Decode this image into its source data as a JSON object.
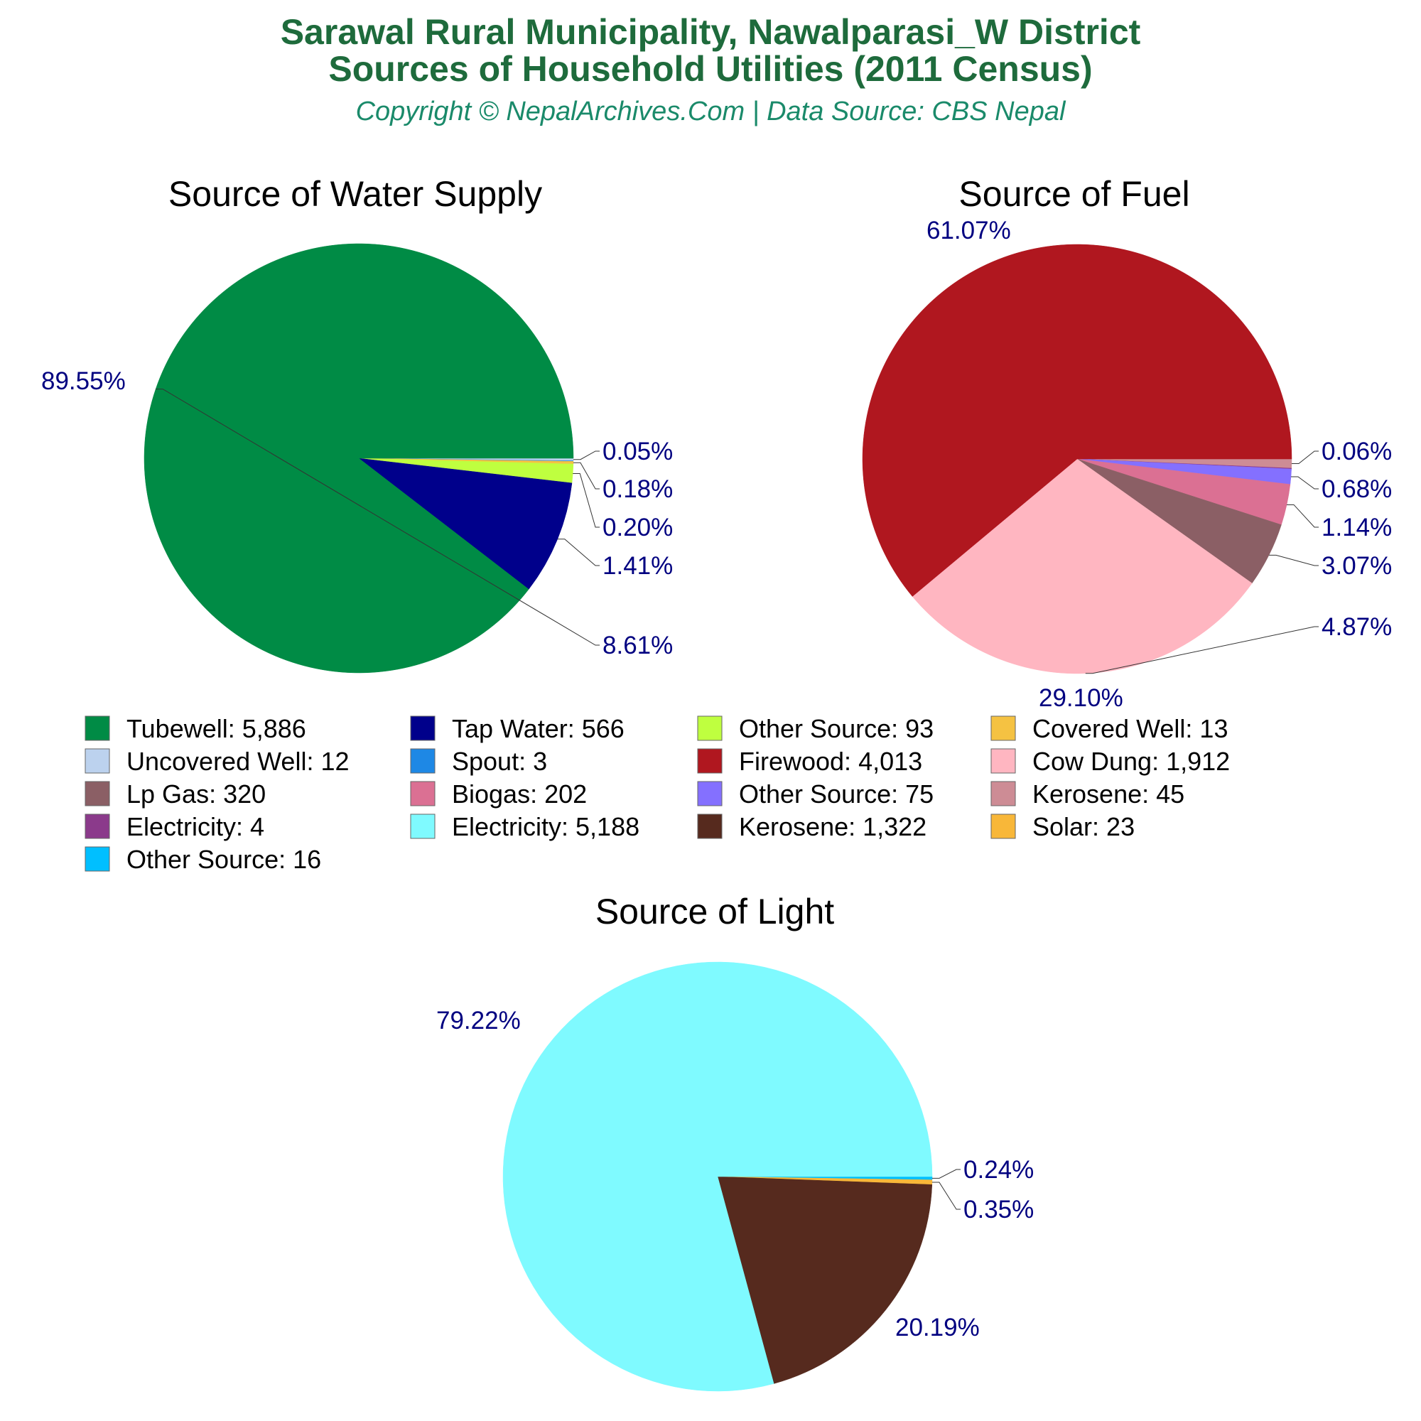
{
  "header": {
    "title_line1": "Sarawal Rural Municipality, Nawalparasi_W District",
    "title_line2": "Sources of Household Utilities (2011 Census)",
    "copyright": "Copyright © NepalArchives.Com | Data Source: CBS Nepal"
  },
  "chart_data": [
    {
      "type": "pie",
      "title": "Source of Water Supply",
      "start": "3 o'clock, clockwise",
      "slices": [
        {
          "label": "Uncovered Well",
          "value": 12,
          "percent_label": "0.05%",
          "color": "#bcd2ee"
        },
        {
          "label": "Spout",
          "value": 3,
          "percent_label": "",
          "color": "#1e88e5"
        },
        {
          "label": "Covered Well",
          "value": 13,
          "percent_label": "0.18%",
          "color": "#f5c242"
        },
        {
          "label": "Other Source",
          "value": 93,
          "percent_label": "0.20%",
          "color": "#bfff3f"
        },
        {
          "label": "Tap Water",
          "value": 566,
          "percent_label": "1.41%",
          "color": "#00008b"
        },
        {
          "label": "Tubewell",
          "value": 5886,
          "percent_label": "8.61%",
          "color": "#008b45"
        }
      ],
      "tubewell_label": "89.55%"
    },
    {
      "type": "pie",
      "title": "Source of Fuel",
      "start": "3 o'clock, clockwise",
      "slices": [
        {
          "label": "Kerosene",
          "value": 45,
          "percent_label": "0.06%",
          "color": "#cd8c95"
        },
        {
          "label": "Electricity",
          "value": 4,
          "percent_label": "",
          "color": "#8b3a8b"
        },
        {
          "label": "Other Source",
          "value": 75,
          "percent_label": "0.68%",
          "color": "#8470ff"
        },
        {
          "label": "Biogas",
          "value": 202,
          "percent_label": "1.14%",
          "color": "#db7093"
        },
        {
          "label": "Lp Gas",
          "value": 320,
          "percent_label": "3.07%",
          "color": "#8b5f65"
        },
        {
          "label": "Cow Dung",
          "value": 1912,
          "percent_label": "4.87%",
          "color": "#ffb6c1"
        },
        {
          "label": "Firewood",
          "value": 4013,
          "percent_label": "29.10%",
          "color": "#b0171f"
        }
      ],
      "firewood_label": "61.07%"
    },
    {
      "type": "pie",
      "title": "Source of Light",
      "start": "3 o'clock, clockwise",
      "slices": [
        {
          "label": "Other Source",
          "value": 16,
          "percent_label": "0.24%",
          "color": "#00bfff"
        },
        {
          "label": "Solar",
          "value": 23,
          "percent_label": "0.35%",
          "color": "#f8b739"
        },
        {
          "label": "Kerosene",
          "value": 1322,
          "percent_label": "20.19%",
          "color": "#562a1e"
        },
        {
          "label": "Electricity",
          "value": 5188,
          "percent_label": "79.22%",
          "color": "#7ffaff"
        }
      ]
    }
  ],
  "legend": [
    {
      "label": "Tubewell: 5,886",
      "color": "#008b45"
    },
    {
      "label": "Tap Water: 566",
      "color": "#00008b"
    },
    {
      "label": "Other Source: 93",
      "color": "#bfff3f"
    },
    {
      "label": "Covered Well: 13",
      "color": "#f5c242"
    },
    {
      "label": "Uncovered Well: 12",
      "color": "#bcd2ee"
    },
    {
      "label": "Spout: 3",
      "color": "#1e88e5"
    },
    {
      "label": "Firewood: 4,013",
      "color": "#b0171f"
    },
    {
      "label": "Cow Dung: 1,912",
      "color": "#ffb6c1"
    },
    {
      "label": "Lp Gas: 320",
      "color": "#8b5f65"
    },
    {
      "label": "Biogas: 202",
      "color": "#db7093"
    },
    {
      "label": "Other Source: 75",
      "color": "#8470ff"
    },
    {
      "label": "Kerosene: 45",
      "color": "#cd8c95"
    },
    {
      "label": "Electricity: 4",
      "color": "#8b3a8b"
    },
    {
      "label": "Electricity: 5,188",
      "color": "#7ffaff"
    },
    {
      "label": "Kerosene: 1,322",
      "color": "#562a1e"
    },
    {
      "label": "Solar: 23",
      "color": "#f8b739"
    },
    {
      "label": "Other Source: 16",
      "color": "#00bfff"
    }
  ]
}
